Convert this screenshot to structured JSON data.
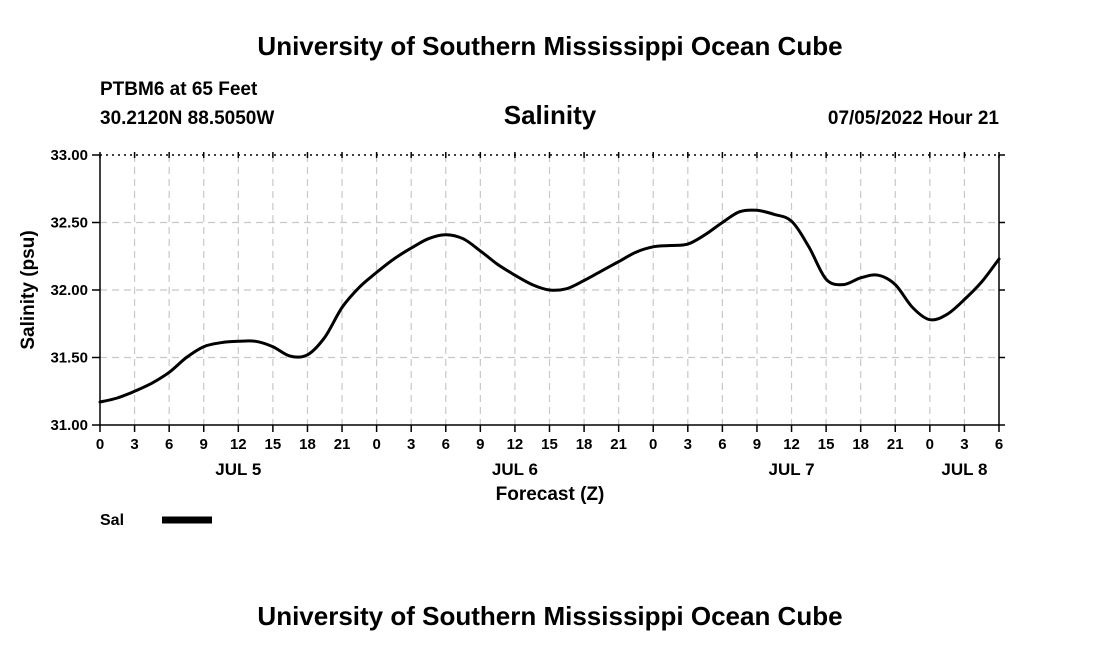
{
  "header": {
    "title": "University of Southern Mississippi Ocean Cube",
    "station": "PTBM6 at 65 Feet",
    "coords": "30.2120N  88.5050W",
    "timestamp": "07/05/2022 Hour 21"
  },
  "footer": {
    "title": "University of Southern Mississippi Ocean Cube"
  },
  "colors": {
    "line": "#000000",
    "grid": "#c8c8c8",
    "axis": "#000000",
    "background": "#ffffff"
  },
  "chart_data": {
    "type": "line",
    "title": "Salinity",
    "xlabel": "Forecast (Z)",
    "ylabel": "Salinity (psu)",
    "xlim": [
      0,
      78
    ],
    "ylim": [
      31.0,
      33.0
    ],
    "y_ticks": [
      31.0,
      31.5,
      32.0,
      32.5,
      33.0
    ],
    "y_tick_labels": [
      "31.00",
      "31.50",
      "32.00",
      "32.50",
      "33.00"
    ],
    "x_ticks": [
      0,
      3,
      6,
      9,
      12,
      15,
      18,
      21,
      24,
      27,
      30,
      33,
      36,
      39,
      42,
      45,
      48,
      51,
      54,
      57,
      60,
      63,
      66,
      69,
      72,
      75,
      78
    ],
    "x_tick_labels": [
      "0",
      "3",
      "6",
      "9",
      "12",
      "15",
      "18",
      "21",
      "0",
      "3",
      "6",
      "9",
      "12",
      "15",
      "18",
      "21",
      "0",
      "3",
      "6",
      "9",
      "12",
      "15",
      "18",
      "21",
      "0",
      "3",
      "6"
    ],
    "date_labels": [
      {
        "x": 12,
        "label": "JUL 5"
      },
      {
        "x": 36,
        "label": "JUL 6"
      },
      {
        "x": 60,
        "label": "JUL 7"
      },
      {
        "x": 75,
        "label": "JUL 8"
      }
    ],
    "grid": true,
    "legend_position": "bottom-left",
    "series": [
      {
        "name": "Sal",
        "x": [
          0,
          1.5,
          3,
          4.5,
          6,
          7.5,
          9,
          10.5,
          12,
          13.5,
          15,
          16.5,
          18,
          19.5,
          21,
          22.5,
          24,
          25.5,
          27,
          28.5,
          30,
          31.5,
          33,
          34.5,
          36,
          37.5,
          39,
          40.5,
          42,
          43.5,
          45,
          46.5,
          48,
          49.5,
          51,
          52.5,
          54,
          55.5,
          57,
          58.5,
          60,
          61.5,
          63,
          64.5,
          66,
          67.5,
          69,
          70.5,
          72,
          73.5,
          75,
          76.5,
          78
        ],
        "values": [
          31.17,
          31.2,
          31.25,
          31.31,
          31.39,
          31.5,
          31.58,
          31.61,
          31.62,
          31.62,
          31.58,
          31.51,
          31.52,
          31.65,
          31.87,
          32.02,
          32.13,
          32.23,
          32.31,
          32.38,
          32.41,
          32.38,
          32.29,
          32.19,
          32.11,
          32.04,
          32.0,
          32.01,
          32.07,
          32.14,
          32.21,
          32.28,
          32.32,
          32.33,
          32.34,
          32.41,
          32.5,
          32.58,
          32.59,
          32.56,
          32.51,
          32.32,
          32.08,
          32.04,
          32.09,
          32.11,
          32.04,
          31.87,
          31.78,
          31.82,
          31.93,
          32.06,
          32.23
        ]
      }
    ]
  }
}
